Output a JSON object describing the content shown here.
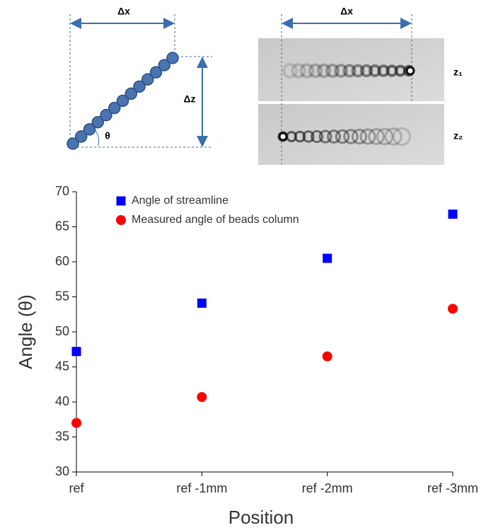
{
  "figure": {
    "left_dx": "Δx",
    "left_dz": "Δz",
    "angle": "θ",
    "right_dx": "Δx",
    "z1": "z₁",
    "z2": "z₂"
  },
  "chart_data": {
    "type": "scatter",
    "xlabel": "Position",
    "ylabel": "Angle (θ)",
    "categories": [
      "ref",
      "ref -1mm",
      "ref -2mm",
      "ref -3mm"
    ],
    "series": [
      {
        "name": "Angle of streamline",
        "color": "#0000ff",
        "marker": "square",
        "values": [
          47.2,
          54.1,
          60.5,
          66.8
        ]
      },
      {
        "name": "Measured angle of beads column",
        "color": "#ff0000",
        "marker": "circle",
        "values": [
          37.0,
          40.7,
          46.5,
          53.3
        ]
      }
    ],
    "ylim": [
      30,
      70
    ],
    "yticks": [
      30,
      35,
      40,
      45,
      50,
      55,
      60,
      65,
      70
    ],
    "legend": "upper left"
  }
}
